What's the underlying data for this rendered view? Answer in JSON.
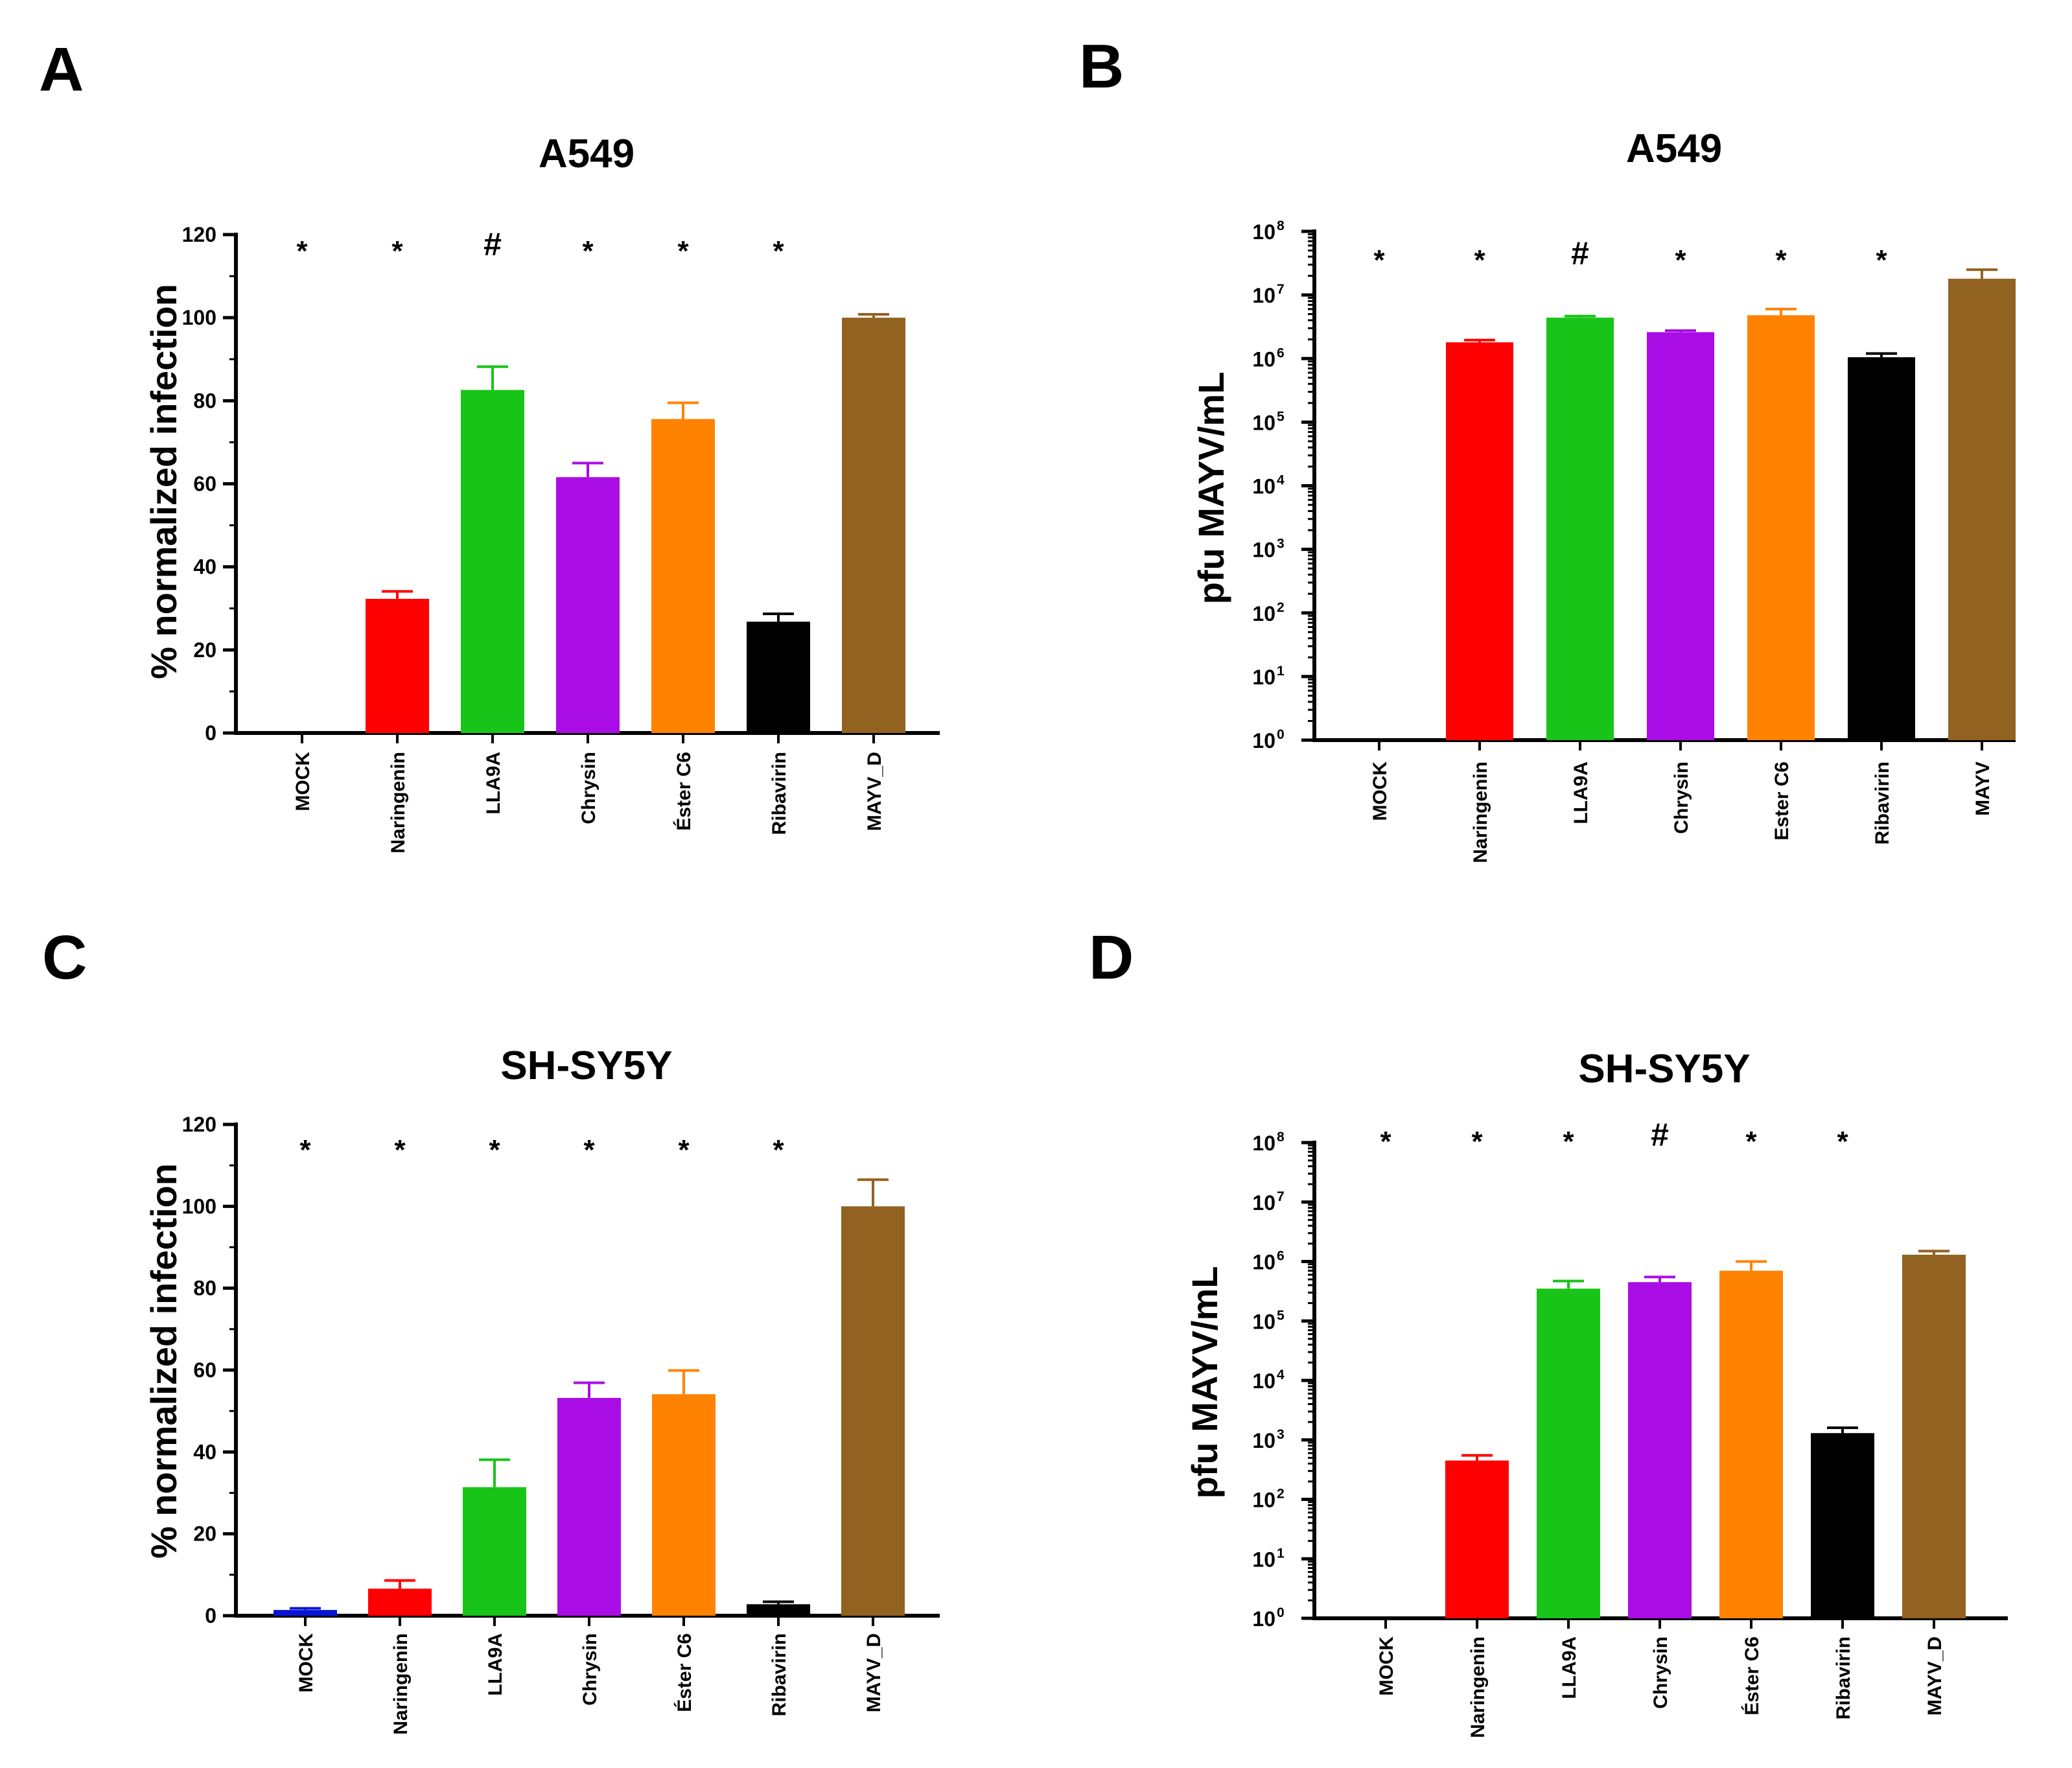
{
  "colors": {
    "MOCK": "#0a14d6",
    "Naringenin": "#ff0000",
    "LLA9A": "#19c419",
    "Chrysin": "#aa0ce6",
    "Éster C6": "#ff8200",
    "Ribavirin": "#000000",
    "MAYV_D": "#926221",
    "MAYV": "#926221"
  },
  "chart_data": [
    {
      "panel": "A",
      "type": "bar",
      "title": "A549",
      "ylabel": "% normalized infection",
      "yscale": "linear",
      "ylim": [
        0,
        120
      ],
      "yticks": [
        "0",
        "20",
        "40",
        "60",
        "80",
        "100",
        "120"
      ],
      "categories": [
        "MOCK",
        "Naringenin",
        "LLA9A",
        "Chrysin",
        "Éster C6",
        "Ribavirin",
        "MAYV_D"
      ],
      "values": [
        0,
        32.3,
        82.6,
        61.6,
        75.6,
        26.8,
        100
      ],
      "errors": [
        0,
        1.8,
        5.6,
        3.4,
        3.9,
        1.9,
        0.8
      ],
      "annotations": [
        "*",
        "*",
        "#",
        "*",
        "*",
        "*",
        ""
      ]
    },
    {
      "panel": "B",
      "type": "bar",
      "title": "A549",
      "ylabel": "pfu MAYV/mL",
      "yscale": "log",
      "ylim": [
        1,
        100000000
      ],
      "yticks": [
        {
          "base": "10",
          "exp": "0"
        },
        {
          "base": "10",
          "exp": "1"
        },
        {
          "base": "10",
          "exp": "2"
        },
        {
          "base": "10",
          "exp": "3"
        },
        {
          "base": "10",
          "exp": "4"
        },
        {
          "base": "10",
          "exp": "5"
        },
        {
          "base": "10",
          "exp": "6"
        },
        {
          "base": "10",
          "exp": "7"
        },
        {
          "base": "10",
          "exp": "8"
        }
      ],
      "categories": [
        "MOCK",
        "Naringenin",
        "LLA9A",
        "Chrysin",
        "Ester C6",
        "Ribavirin",
        "MAYV"
      ],
      "values": [
        1,
        1800000,
        4400000,
        2600000,
        4800000,
        1050000,
        18000000
      ],
      "errors": [
        0,
        150000,
        250000,
        150000,
        1200000,
        150000,
        7000000
      ],
      "annotations": [
        "*",
        "*",
        "#",
        "*",
        "*",
        "*",
        ""
      ]
    },
    {
      "panel": "C",
      "type": "bar",
      "title": "SH-SY5Y",
      "ylabel": "% normalized infection",
      "yscale": "linear",
      "ylim": [
        0,
        120
      ],
      "yticks": [
        "0",
        "20",
        "40",
        "60",
        "80",
        "100",
        "120"
      ],
      "categories": [
        "MOCK",
        "Naringenin",
        "LLA9A",
        "Chrysin",
        "Éster C6",
        "Ribavirin",
        "MAYV_D"
      ],
      "values": [
        1.4,
        6.6,
        31.4,
        53.2,
        54.1,
        2.8,
        100
      ],
      "errors": [
        0.4,
        2.0,
        6.7,
        3.7,
        5.8,
        0.6,
        6.5
      ],
      "annotations": [
        "*",
        "*",
        "*",
        "*",
        "*",
        "*",
        ""
      ]
    },
    {
      "panel": "D",
      "type": "bar",
      "title": "SH-SY5Y",
      "ylabel": "pfu MAYV/mL",
      "yscale": "log",
      "ylim": [
        1,
        100000000
      ],
      "yticks": [
        {
          "base": "10",
          "exp": "0"
        },
        {
          "base": "10",
          "exp": "1"
        },
        {
          "base": "10",
          "exp": "2"
        },
        {
          "base": "10",
          "exp": "3"
        },
        {
          "base": "10",
          "exp": "4"
        },
        {
          "base": "10",
          "exp": "5"
        },
        {
          "base": "10",
          "exp": "6"
        },
        {
          "base": "10",
          "exp": "7"
        },
        {
          "base": "10",
          "exp": "8"
        }
      ],
      "categories": [
        "MOCK",
        "Naringenin",
        "LLA9A",
        "Chrysin",
        "Éster C6",
        "Ribavirin",
        "MAYV_D"
      ],
      "values": [
        1,
        450,
        350000,
        450000,
        700000,
        1300,
        1300000
      ],
      "errors": [
        0,
        100,
        120000,
        100000,
        300000,
        300,
        200000
      ],
      "annotations": [
        "*",
        "*",
        "*",
        "#",
        "*",
        "*",
        ""
      ]
    }
  ]
}
